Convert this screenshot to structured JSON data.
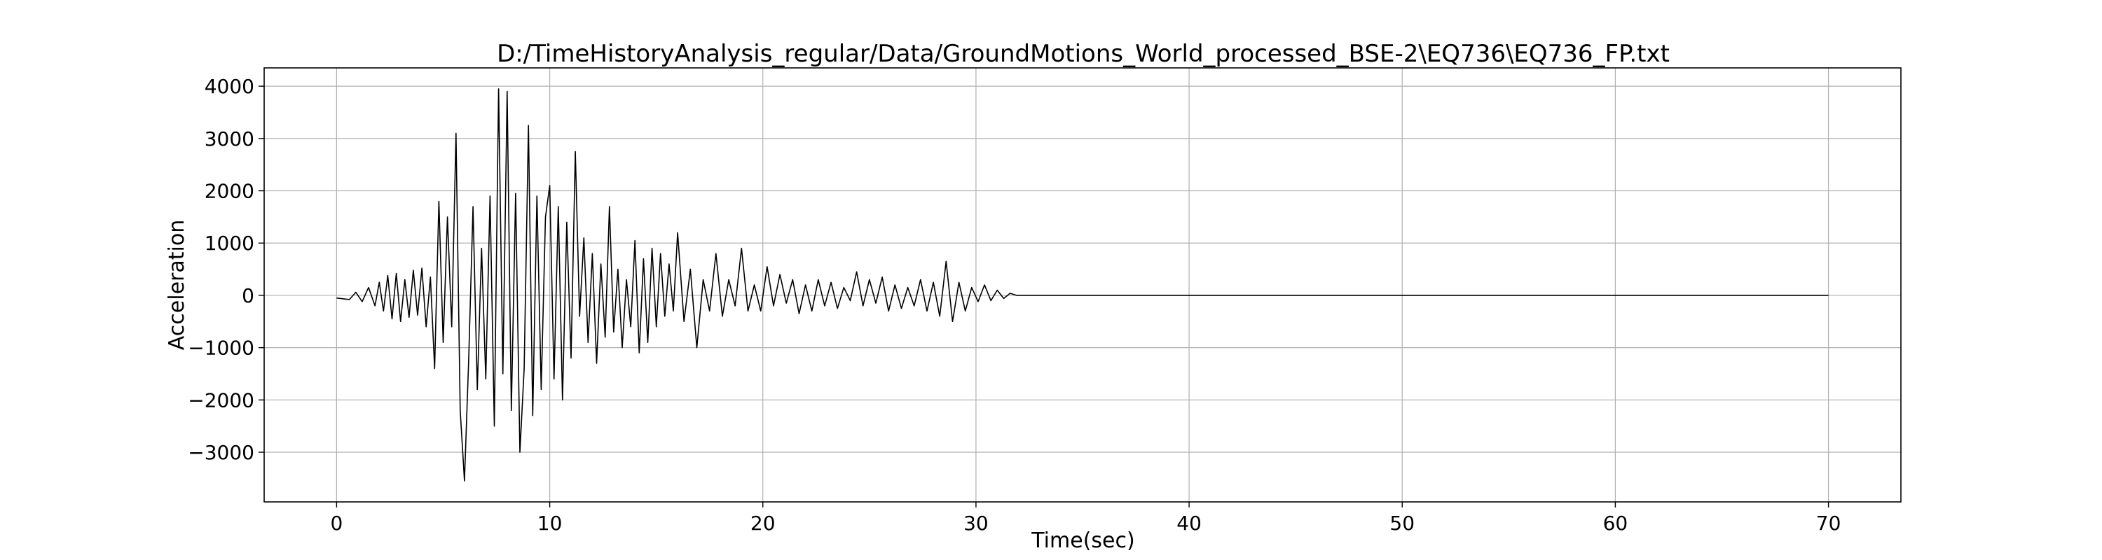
{
  "chart_data": {
    "type": "line",
    "title": "D:/TimeHistoryAnalysis_regular/Data/GroundMotions_World_processed_BSE-2\\EQ736\\EQ736_FP.txt",
    "xlabel": "Time(sec)",
    "ylabel": "Acceleration",
    "xlim": [
      -3.4,
      73.4
    ],
    "ylim": [
      -3950,
      4350
    ],
    "xticks": [
      0,
      10,
      20,
      30,
      40,
      50,
      60,
      70
    ],
    "xtick_labels": [
      "0",
      "10",
      "20",
      "30",
      "40",
      "50",
      "60",
      "70"
    ],
    "yticks": [
      -3000,
      -2000,
      -1000,
      0,
      1000,
      2000,
      3000,
      4000
    ],
    "ytick_labels": [
      "−3000",
      "−2000",
      "−1000",
      "0",
      "1000",
      "2000",
      "3000",
      "4000"
    ],
    "grid": true,
    "line_color": "#000000",
    "series": [
      {
        "x": [
          0,
          0.6,
          0.9,
          1.2,
          1.5,
          1.8,
          2.0,
          2.2,
          2.4,
          2.6,
          2.8,
          3.0,
          3.2,
          3.4,
          3.6,
          3.8,
          4.0,
          4.2,
          4.4,
          4.6,
          4.8,
          5.0,
          5.2,
          5.4,
          5.6,
          5.8,
          6.0,
          6.2,
          6.4,
          6.6,
          6.8,
          7.0,
          7.2,
          7.4,
          7.6,
          7.8,
          8.0,
          8.2,
          8.4,
          8.6,
          8.8,
          9.0,
          9.2,
          9.4,
          9.6,
          9.8,
          10.0,
          10.2,
          10.4,
          10.6,
          10.8,
          11.0,
          11.2,
          11.4,
          11.6,
          11.8,
          12.0,
          12.2,
          12.4,
          12.6,
          12.8,
          13.0,
          13.2,
          13.4,
          13.6,
          13.8,
          14.0,
          14.2,
          14.4,
          14.6,
          14.8,
          15.0,
          15.2,
          15.4,
          15.6,
          15.8,
          16.0,
          16.3,
          16.6,
          16.9,
          17.2,
          17.5,
          17.8,
          18.1,
          18.4,
          18.7,
          19.0,
          19.3,
          19.6,
          19.9,
          20.2,
          20.5,
          20.8,
          21.1,
          21.4,
          21.7,
          22.0,
          22.3,
          22.6,
          22.9,
          23.2,
          23.5,
          23.8,
          24.1,
          24.4,
          24.7,
          25.0,
          25.3,
          25.6,
          25.9,
          26.2,
          26.5,
          26.8,
          27.1,
          27.4,
          27.7,
          28.0,
          28.3,
          28.6,
          28.9,
          29.2,
          29.5,
          29.8,
          30.1,
          30.4,
          30.7,
          31.0,
          31.3,
          31.6,
          31.9,
          32.2,
          32.5,
          32.8,
          33.1,
          33.4,
          33.7,
          34.0,
          34.3,
          34.6,
          34.9,
          35.2,
          35.5,
          35.8,
          36.1,
          36.4,
          36.7,
          37.0,
          37.3,
          37.6,
          38.0,
          38.5,
          39.0,
          45.0,
          55.0,
          70.0
        ],
        "y": [
          -50,
          -80,
          60,
          -120,
          150,
          -200,
          250,
          -300,
          380,
          -450,
          420,
          -500,
          300,
          -420,
          480,
          -380,
          520,
          -600,
          350,
          -1400,
          1800,
          -900,
          1500,
          -600,
          3100,
          -2200,
          -3550,
          -1200,
          1700,
          -1800,
          900,
          -1600,
          1900,
          -2500,
          3950,
          -1500,
          3900,
          -2200,
          1950,
          -3000,
          -1400,
          3250,
          -2300,
          1900,
          -1800,
          1500,
          2100,
          -1600,
          1700,
          -2000,
          1400,
          -1200,
          2750,
          -400,
          1100,
          -900,
          800,
          -1300,
          600,
          -800,
          1700,
          -700,
          500,
          -1000,
          300,
          -600,
          1050,
          -1100,
          700,
          -900,
          900,
          -600,
          800,
          -400,
          600,
          -300,
          1200,
          -500,
          500,
          -1000,
          300,
          -300,
          800,
          -400,
          300,
          -200,
          900,
          -300,
          200,
          -300,
          550,
          -200,
          400,
          -150,
          300,
          -350,
          200,
          -300,
          300,
          -200,
          250,
          -250,
          150,
          -100,
          450,
          -200,
          300,
          -150,
          350,
          -300,
          200,
          -250,
          150,
          -200,
          300,
          -300,
          250,
          -400,
          650,
          -500,
          250,
          -300,
          150,
          -120,
          200,
          -100,
          100,
          -60,
          40,
          0,
          0,
          0,
          0,
          0,
          0,
          0,
          0,
          0,
          0,
          0,
          0,
          0,
          0,
          0,
          0,
          0,
          0,
          0,
          0,
          0,
          0,
          0,
          0,
          0,
          0
        ]
      }
    ]
  }
}
